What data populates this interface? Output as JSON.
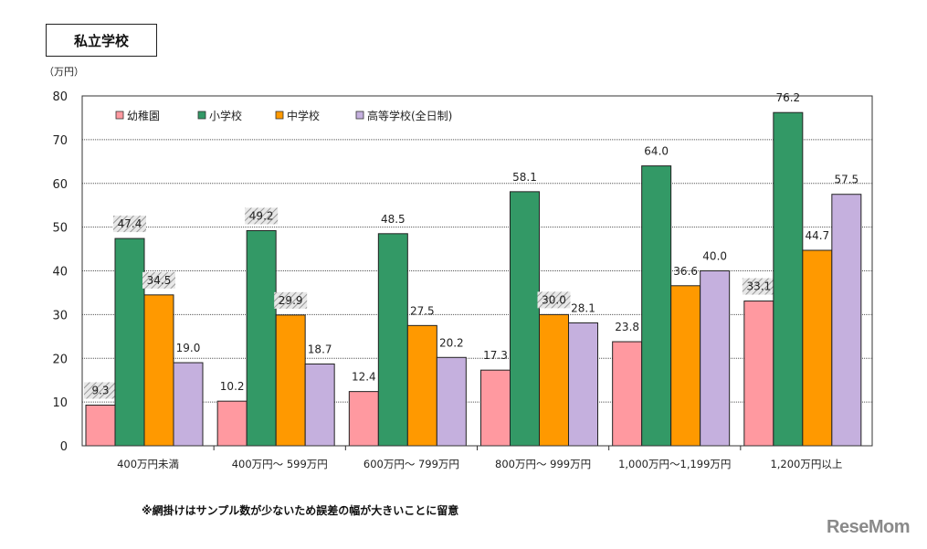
{
  "title": "私立学校",
  "note": "※網掛けはサンプル数が少ないため誤差の幅が大きいことに留意",
  "logo": "ReseMom",
  "chart_data": {
    "type": "bar",
    "ylabel": "（万円）",
    "ylim": [
      0,
      80
    ],
    "yticks": [
      0,
      10,
      20,
      30,
      40,
      50,
      60,
      70,
      80
    ],
    "grid": true,
    "legend_position": "top-left",
    "categories": [
      "400万円未満",
      "400万円～ 599万円",
      "600万円～ 799万円",
      "800万円～ 999万円",
      "1,000万円～1,199万円",
      "1,200万円以上"
    ],
    "series": [
      {
        "name": "幼稚園",
        "color": "#ff99a0",
        "values": [
          9.3,
          10.2,
          12.4,
          17.3,
          23.8,
          33.1
        ],
        "hatched": [
          true,
          false,
          false,
          false,
          false,
          true
        ]
      },
      {
        "name": "小学校",
        "color": "#339966",
        "values": [
          47.4,
          49.2,
          48.5,
          58.1,
          64.0,
          76.2
        ],
        "hatched": [
          true,
          true,
          false,
          false,
          false,
          false
        ]
      },
      {
        "name": "中学校",
        "color": "#ff9900",
        "values": [
          34.5,
          29.9,
          27.5,
          30.0,
          36.6,
          44.7
        ],
        "hatched": [
          true,
          true,
          false,
          true,
          false,
          false
        ]
      },
      {
        "name": "高等学校(全日制)",
        "color": "#c5b0de",
        "values": [
          19.0,
          18.7,
          20.2,
          28.1,
          40.0,
          57.5
        ],
        "hatched": [
          false,
          false,
          false,
          false,
          false,
          false
        ]
      }
    ]
  }
}
